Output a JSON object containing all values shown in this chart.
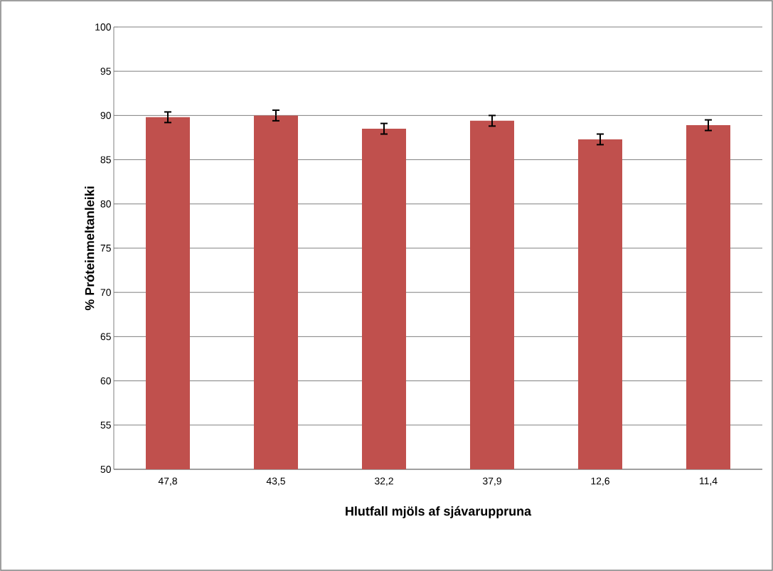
{
  "chart_data": {
    "type": "bar",
    "xlabel": "Hlutfall mjöls af sjávaruppruna",
    "ylabel": "% Próteinmeltanleiki",
    "categories": [
      "47,8",
      "43,5",
      "32,2",
      "37,9",
      "12,6",
      "11,4"
    ],
    "values": [
      89.8,
      90.0,
      88.5,
      89.4,
      87.3,
      88.9
    ],
    "errors": [
      0.6,
      0.6,
      0.6,
      0.6,
      0.6,
      0.6
    ],
    "color": "#c0504d",
    "ylim": [
      50,
      100
    ],
    "yticks": [
      50,
      55,
      60,
      65,
      70,
      75,
      80,
      85,
      90,
      95,
      100
    ],
    "grid": "y"
  }
}
